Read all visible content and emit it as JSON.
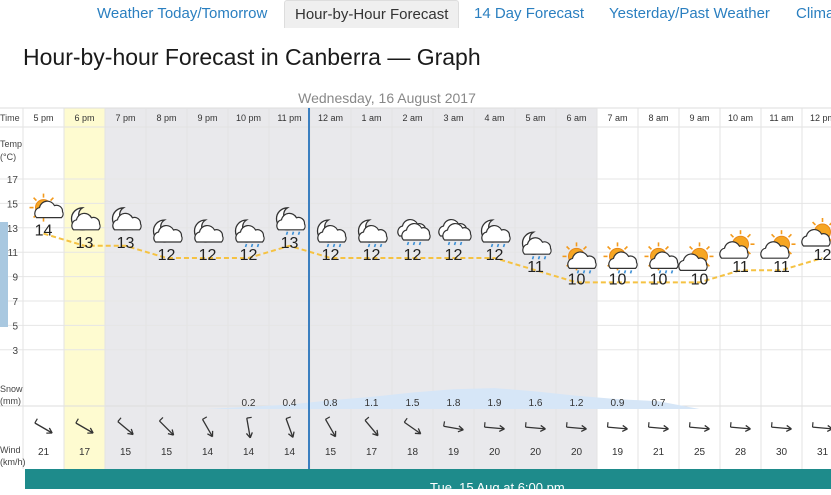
{
  "nav": {
    "tabs": [
      {
        "label": "Weather Today/Tomorrow",
        "active": false
      },
      {
        "label": "Hour-by-Hour Forecast",
        "active": true
      },
      {
        "label": "14 Day Forecast",
        "active": false
      },
      {
        "label": "Yesterday/Past Weather",
        "active": false
      },
      {
        "label": "Clima",
        "active": false
      }
    ]
  },
  "page_title": "Hour-by-hour Forecast in Canberra — Graph",
  "graph": {
    "date_label": "Wednesday, 16 August 2017",
    "row_labels": {
      "time": "Time",
      "temp": "Temp",
      "temp_unit": "(°C)",
      "snow": "Snow",
      "snow_unit": "(mm)",
      "wind": "Wind",
      "wind_unit": "(km/h)"
    },
    "temp_axis": [
      "17",
      "15",
      "13",
      "11",
      "9",
      "7",
      "5",
      "3"
    ],
    "hours": [
      {
        "time": "5 pm",
        "temp": "14",
        "icon": "partly-sunny-icon",
        "snow": "",
        "wind": "21",
        "dir": 120
      },
      {
        "time": "6 pm",
        "temp": "13",
        "icon": "cloudy-moon-icon",
        "snow": "",
        "wind": "17",
        "dir": 120
      },
      {
        "time": "7 pm",
        "temp": "13",
        "icon": "cloudy-moon-icon",
        "snow": "",
        "wind": "15",
        "dir": 130
      },
      {
        "time": "8 pm",
        "temp": "12",
        "icon": "cloudy-moon-icon",
        "snow": "",
        "wind": "15",
        "dir": 135
      },
      {
        "time": "9 pm",
        "temp": "12",
        "icon": "cloudy-moon-icon",
        "snow": "",
        "wind": "14",
        "dir": 150
      },
      {
        "time": "10 pm",
        "temp": "12",
        "icon": "moon-rain-icon",
        "snow": "0.2",
        "wind": "14",
        "dir": 170
      },
      {
        "time": "11 pm",
        "temp": "13",
        "icon": "moon-rain-icon",
        "snow": "0.4",
        "wind": "14",
        "dir": 160
      },
      {
        "time": "12 am",
        "temp": "12",
        "icon": "moon-rain-icon",
        "snow": "0.8",
        "wind": "15",
        "dir": 150
      },
      {
        "time": "1 am",
        "temp": "12",
        "icon": "moon-rain-icon",
        "snow": "1.1",
        "wind": "17",
        "dir": 140
      },
      {
        "time": "2 am",
        "temp": "12",
        "icon": "rain-cloud-icon",
        "snow": "1.5",
        "wind": "18",
        "dir": 125
      },
      {
        "time": "3 am",
        "temp": "12",
        "icon": "rain-cloud-icon",
        "snow": "1.8",
        "wind": "19",
        "dir": 100
      },
      {
        "time": "4 am",
        "temp": "12",
        "icon": "moon-rain-icon",
        "snow": "1.9",
        "wind": "20",
        "dir": 95
      },
      {
        "time": "5 am",
        "temp": "11",
        "icon": "moon-rain-icon",
        "snow": "1.6",
        "wind": "20",
        "dir": 95
      },
      {
        "time": "6 am",
        "temp": "10",
        "icon": "sun-rain-icon",
        "snow": "1.2",
        "wind": "20",
        "dir": 95
      },
      {
        "time": "7 am",
        "temp": "10",
        "icon": "sun-rain-icon",
        "snow": "0.9",
        "wind": "19",
        "dir": 95
      },
      {
        "time": "8 am",
        "temp": "10",
        "icon": "sun-rain-icon",
        "snow": "0.7",
        "wind": "21",
        "dir": 95
      },
      {
        "time": "9 am",
        "temp": "10",
        "icon": "sun-cloud-icon",
        "snow": "",
        "wind": "25",
        "dir": 95
      },
      {
        "time": "10 am",
        "temp": "11",
        "icon": "sun-cloud-icon",
        "snow": "",
        "wind": "28",
        "dir": 95
      },
      {
        "time": "11 am",
        "temp": "11",
        "icon": "sun-cloud-icon",
        "snow": "",
        "wind": "30",
        "dir": 95
      },
      {
        "time": "12 pm",
        "temp": "12",
        "icon": "sun-cloud-icon",
        "snow": "",
        "wind": "31",
        "dir": 95
      }
    ]
  },
  "footer": {
    "label": "Tue, 15 Aug at 6:00 pm"
  },
  "colors": {
    "link": "#2a7fc0",
    "current_hour_highlight": "#fefbd0",
    "night_shade": "#e9e9ec",
    "temp_line": "#f5c242",
    "precip_fill": "#d6e6f7",
    "now_line": "#3b7fc0",
    "footer_bar": "#1e8b8b"
  }
}
